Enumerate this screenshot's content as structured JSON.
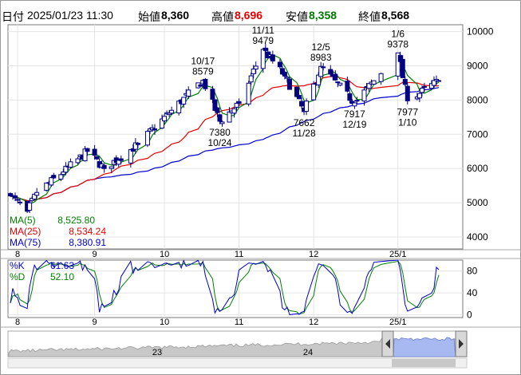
{
  "header": {
    "date_label": "日付",
    "date_value": "2025/01/23 11:30",
    "open_label": "始値",
    "open_value": "8,360",
    "high_label": "高値",
    "high_value": "8,696",
    "low_label": "安値",
    "low_value": "8,358",
    "close_label": "終値",
    "close_value": "8,568"
  },
  "legend": {
    "ma5": "MA(5)",
    "ma5_value": "8,525.80",
    "ma25": "MA(25)",
    "ma25_value": "8,534.24",
    "ma75": "MA(75)",
    "ma75_value": "8,380.91",
    "k": "%K",
    "k_value": "61.63",
    "d": "%D",
    "d_value": "52.10"
  },
  "annotations": [
    {
      "date": "10/17",
      "value": "8579"
    },
    {
      "date": "10/24",
      "value": "7380"
    },
    {
      "date": "11/11",
      "value": "9479"
    },
    {
      "date": "11/28",
      "value": "7662"
    },
    {
      "date": "12/5",
      "value": "8983"
    },
    {
      "date": "12/19",
      "value": "7917"
    },
    {
      "date": "1/6",
      "value": "9378"
    },
    {
      "date": "1/10",
      "value": "7977"
    }
  ],
  "colors": {
    "up": "#ffffff",
    "down": "#000080",
    "ma5": "#008000",
    "ma25": "#e60000",
    "ma75": "#0000cc",
    "k": "#0000cc",
    "d": "#008000"
  },
  "chart_data": {
    "type": "candlestick",
    "y_ticks": [
      10000,
      9000,
      8000,
      7000,
      6000,
      5000,
      4000
    ],
    "ylim": [
      3650,
      10200
    ],
    "x_tick_labels": [
      "8",
      "9",
      "10",
      "11",
      "12",
      "25/1"
    ],
    "ohlc_keypoints": [
      {
        "date": "2024-07-29",
        "close": 5200
      },
      {
        "date": "2024-08-05",
        "close": 4750
      },
      {
        "date": "2024-08-09",
        "close": 5300
      },
      {
        "date": "2024-08-20",
        "close": 5900
      },
      {
        "date": "2024-08-30",
        "close": 6500
      },
      {
        "date": "2024-09-06",
        "close": 6000
      },
      {
        "date": "2024-09-20",
        "close": 6700
      },
      {
        "date": "2024-10-04",
        "close": 7700
      },
      {
        "date": "2024-10-17",
        "close": 8579
      },
      {
        "date": "2024-10-24",
        "close": 7380
      },
      {
        "date": "2024-11-01",
        "close": 7900
      },
      {
        "date": "2024-11-11",
        "close": 9479
      },
      {
        "date": "2024-11-20",
        "close": 8700
      },
      {
        "date": "2024-11-28",
        "close": 7662
      },
      {
        "date": "2024-12-05",
        "close": 8983
      },
      {
        "date": "2024-12-19",
        "close": 7917
      },
      {
        "date": "2025-01-06",
        "close": 9378
      },
      {
        "date": "2025-01-10",
        "close": 7977
      },
      {
        "date": "2025-01-23",
        "close": 8568
      }
    ],
    "stoch_ticks": [
      80,
      40,
      0
    ],
    "stoch_ylim": [
      -5,
      100
    ],
    "navigator_labels": [
      "23",
      "24"
    ]
  }
}
